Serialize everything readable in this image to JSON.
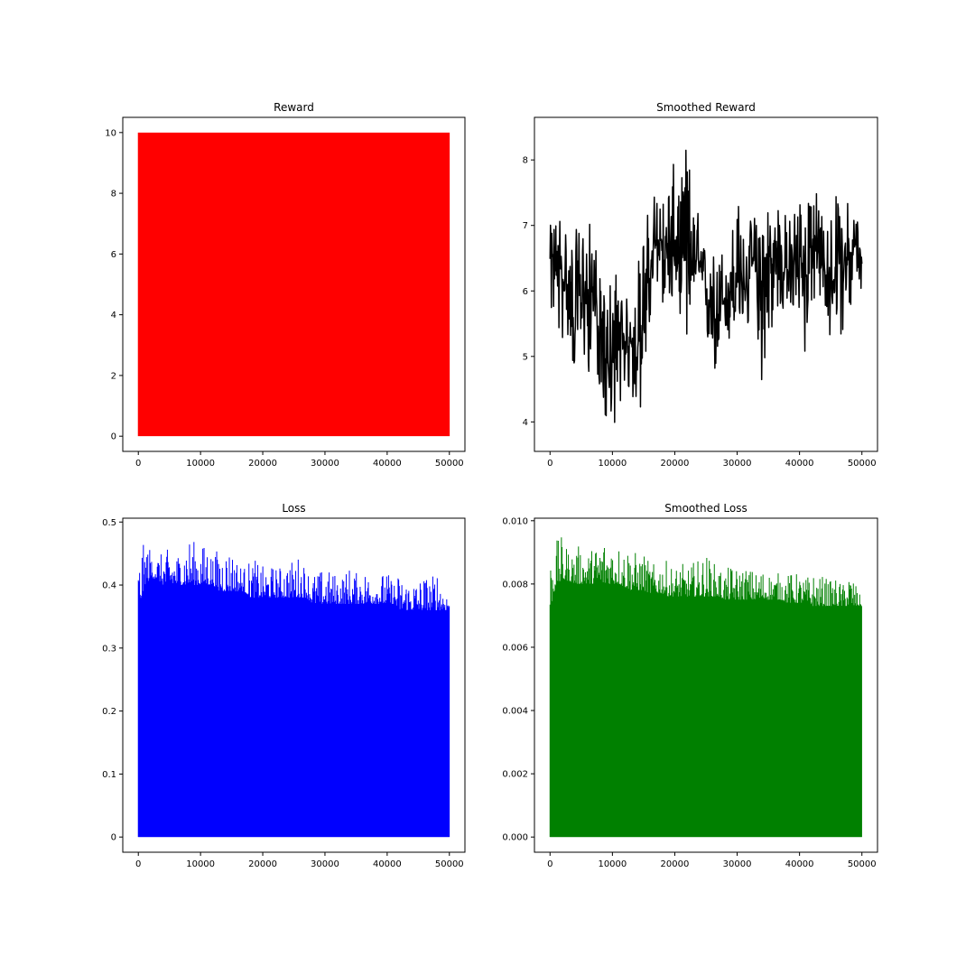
{
  "chart_data": [
    {
      "type": "area",
      "title": "Reward",
      "color": "#ff0000",
      "xlim": [
        -2500,
        52500
      ],
      "ylim": [
        -0.5,
        10.5
      ],
      "xticks": [
        0,
        10000,
        20000,
        30000,
        40000,
        50000
      ],
      "yticks": [
        0,
        2,
        4,
        6,
        8,
        10
      ],
      "series": [
        {
          "x": [
            0,
            50000
          ],
          "y_min": [
            0,
            0
          ],
          "y_max": [
            10,
            10
          ]
        }
      ]
    },
    {
      "type": "line",
      "title": "Smoothed Reward",
      "color": "#000000",
      "xlim": [
        -2500,
        52500
      ],
      "ylim": [
        3.55,
        8.65
      ],
      "xticks": [
        0,
        10000,
        20000,
        30000,
        40000,
        50000
      ],
      "yticks": [
        4,
        5,
        6,
        7,
        8
      ],
      "series": [
        {
          "x": [
            0,
            1000,
            2000,
            3000,
            4000,
            5000,
            6000,
            7000,
            8000,
            9000,
            10000,
            11000,
            12000,
            13000,
            14000,
            15000,
            16000,
            17000,
            18000,
            19000,
            20000,
            21000,
            22000,
            23000,
            24000,
            25000,
            26000,
            27000,
            28000,
            29000,
            30000,
            31000,
            32000,
            33000,
            34000,
            35000,
            36000,
            37000,
            38000,
            39000,
            40000,
            41000,
            42000,
            43000,
            44000,
            45000,
            46000,
            47000,
            48000,
            49000,
            50000
          ],
          "y": [
            6.4,
            6.6,
            6.2,
            5.9,
            5.6,
            6.0,
            5.8,
            6.1,
            5.2,
            4.8,
            4.9,
            5.2,
            5.0,
            5.3,
            5.1,
            5.8,
            6.2,
            6.7,
            6.8,
            6.6,
            6.5,
            6.4,
            6.9,
            6.5,
            6.3,
            6.0,
            5.8,
            5.6,
            5.9,
            6.1,
            6.2,
            6.0,
            6.3,
            6.5,
            6.1,
            6.2,
            6.4,
            6.6,
            6.3,
            6.5,
            6.4,
            6.2,
            6.8,
            6.5,
            6.3,
            6.1,
            6.4,
            6.6,
            6.5,
            6.7,
            6.4
          ],
          "range_min": [
            5.7,
            5.2,
            5.2,
            5.3,
            4.6,
            5.0,
            4.7,
            4.9,
            4.5,
            3.9,
            3.8,
            4.3,
            4.3,
            4.4,
            3.9,
            4.4,
            5.4,
            5.8,
            5.8,
            5.7,
            5.9,
            5.6,
            5.0,
            5.8,
            5.7,
            5.3,
            4.6,
            4.8,
            5.2,
            5.1,
            5.3,
            5.5,
            5.3,
            5.6,
            4.5,
            5.2,
            5.5,
            5.6,
            5.7,
            5.3,
            5.6,
            4.9,
            5.8,
            5.7,
            5.6,
            5.2,
            5.4,
            5.3,
            5.6,
            5.8,
            6.0
          ],
          "range_max": [
            7.0,
            7.1,
            7.4,
            6.8,
            6.9,
            7.1,
            7.1,
            7.0,
            6.2,
            5.9,
            6.5,
            6.3,
            5.9,
            5.9,
            6.5,
            6.9,
            7.4,
            7.6,
            7.4,
            7.7,
            8.0,
            7.7,
            8.4,
            7.3,
            7.2,
            6.6,
            6.6,
            6.6,
            6.8,
            6.9,
            7.5,
            6.9,
            7.1,
            7.2,
            7.5,
            7.5,
            7.2,
            7.7,
            7.0,
            7.3,
            7.5,
            7.4,
            8.1,
            7.3,
            7.2,
            7.3,
            7.5,
            7.1,
            7.5,
            7.4,
            6.5
          ]
        }
      ]
    },
    {
      "type": "area",
      "title": "Loss",
      "color": "#0000ff",
      "xlim": [
        -2500,
        52500
      ],
      "ylim": [
        -0.0241,
        0.5061
      ],
      "xticks": [
        0,
        10000,
        20000,
        30000,
        40000,
        50000
      ],
      "yticks": [
        0.0,
        0.1,
        0.2,
        0.3,
        0.4,
        0.5
      ],
      "series": [
        {
          "x": [
            0,
            1000,
            2000,
            3000,
            4000,
            5000,
            6000,
            7000,
            8000,
            9000,
            10000,
            11000,
            12000,
            13000,
            14000,
            15000,
            16000,
            17000,
            18000,
            19000,
            20000,
            21000,
            22000,
            23000,
            24000,
            25000,
            26000,
            27000,
            28000,
            29000,
            30000,
            31000,
            32000,
            33000,
            34000,
            35000,
            36000,
            37000,
            38000,
            39000,
            40000,
            41000,
            42000,
            43000,
            44000,
            45000,
            46000,
            47000,
            48000,
            49000,
            50000
          ],
          "y_min": [
            0.36,
            0.4,
            0.41,
            0.41,
            0.4,
            0.4,
            0.4,
            0.4,
            0.4,
            0.4,
            0.4,
            0.4,
            0.4,
            0.39,
            0.39,
            0.39,
            0.39,
            0.39,
            0.38,
            0.38,
            0.38,
            0.38,
            0.38,
            0.38,
            0.38,
            0.38,
            0.38,
            0.38,
            0.37,
            0.37,
            0.37,
            0.37,
            0.37,
            0.37,
            0.37,
            0.37,
            0.37,
            0.37,
            0.37,
            0.37,
            0.37,
            0.37,
            0.36,
            0.36,
            0.36,
            0.36,
            0.36,
            0.36,
            0.36,
            0.36,
            0.36
          ],
          "y_max": [
            0.44,
            0.47,
            0.46,
            0.45,
            0.45,
            0.46,
            0.45,
            0.46,
            0.48,
            0.47,
            0.46,
            0.47,
            0.45,
            0.46,
            0.46,
            0.46,
            0.44,
            0.43,
            0.44,
            0.44,
            0.43,
            0.43,
            0.43,
            0.43,
            0.44,
            0.44,
            0.45,
            0.43,
            0.42,
            0.42,
            0.43,
            0.42,
            0.42,
            0.42,
            0.43,
            0.42,
            0.43,
            0.42,
            0.42,
            0.42,
            0.42,
            0.41,
            0.42,
            0.41,
            0.41,
            0.41,
            0.42,
            0.41,
            0.43,
            0.4,
            0.39
          ],
          "y_min_floor": 0
        }
      ]
    },
    {
      "type": "area",
      "title": "Smoothed Loss",
      "color": "#008000",
      "xlim": [
        -2500,
        52500
      ],
      "ylim": [
        -0.00048,
        0.01008
      ],
      "xticks": [
        0,
        10000,
        20000,
        30000,
        40000,
        50000
      ],
      "yticks": [
        "0.000",
        "0.002",
        "0.004",
        "0.006",
        "0.008",
        "0.010"
      ],
      "series": [
        {
          "x": [
            0,
            1000,
            2000,
            3000,
            4000,
            5000,
            6000,
            7000,
            8000,
            9000,
            10000,
            11000,
            12000,
            13000,
            14000,
            15000,
            16000,
            17000,
            18000,
            19000,
            20000,
            21000,
            22000,
            23000,
            24000,
            25000,
            26000,
            27000,
            28000,
            29000,
            30000,
            31000,
            32000,
            33000,
            34000,
            35000,
            36000,
            37000,
            38000,
            39000,
            40000,
            41000,
            42000,
            43000,
            44000,
            45000,
            46000,
            47000,
            48000,
            49000,
            50000
          ],
          "y_min": [
            0.0072,
            0.008,
            0.0081,
            0.0081,
            0.008,
            0.008,
            0.008,
            0.008,
            0.008,
            0.008,
            0.008,
            0.008,
            0.0079,
            0.0078,
            0.0078,
            0.0078,
            0.0077,
            0.0077,
            0.0077,
            0.0076,
            0.0076,
            0.0076,
            0.0076,
            0.0076,
            0.0076,
            0.0076,
            0.0076,
            0.0076,
            0.0075,
            0.0075,
            0.0075,
            0.0075,
            0.0075,
            0.0075,
            0.0075,
            0.0075,
            0.0075,
            0.0075,
            0.0074,
            0.0074,
            0.0074,
            0.0074,
            0.0073,
            0.0073,
            0.0073,
            0.0073,
            0.0073,
            0.0073,
            0.0073,
            0.0073,
            0.0073
          ],
          "y_max": [
            0.0089,
            0.0094,
            0.0095,
            0.0091,
            0.0091,
            0.0093,
            0.009,
            0.0092,
            0.0094,
            0.0096,
            0.0094,
            0.0093,
            0.0092,
            0.0093,
            0.0089,
            0.009,
            0.0087,
            0.0086,
            0.0088,
            0.0087,
            0.0085,
            0.0087,
            0.0085,
            0.0087,
            0.0088,
            0.009,
            0.0087,
            0.0086,
            0.0084,
            0.0086,
            0.0085,
            0.0086,
            0.0085,
            0.0084,
            0.0085,
            0.0084,
            0.0083,
            0.0084,
            0.0083,
            0.0084,
            0.0083,
            0.0082,
            0.0084,
            0.0082,
            0.0083,
            0.0081,
            0.0082,
            0.008,
            0.0085,
            0.008,
            0.0075
          ]
        }
      ]
    }
  ]
}
